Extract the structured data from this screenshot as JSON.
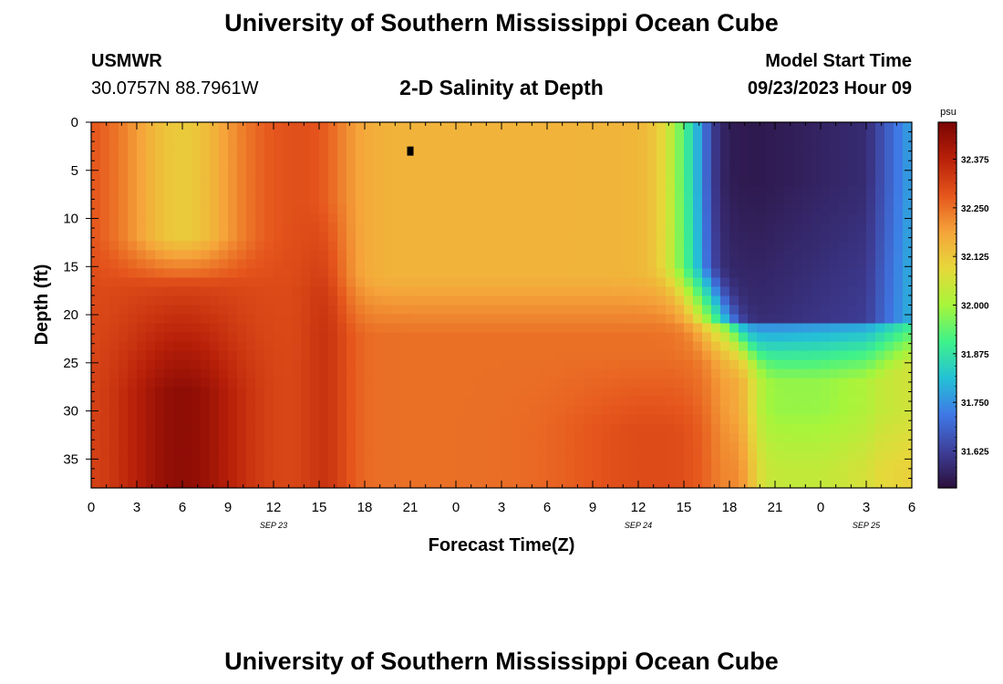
{
  "page": {
    "title": "University of Southern Mississippi Ocean Cube",
    "station": "USMWR",
    "coordinates": "30.0757N  88.7961W",
    "subtitle": "2-D Salinity at Depth",
    "model_start_label": "Model Start Time",
    "model_start_value": "09/23/2023 Hour 09",
    "footer_title": "University of Southern Mississippi Ocean Cube"
  },
  "chart_data": {
    "type": "heatmap",
    "xlabel": "Forecast Time(Z)",
    "ylabel": "Depth (ft)",
    "x_ticks": [
      "0",
      "3",
      "6",
      "9",
      "12",
      "15",
      "18",
      "21",
      "0",
      "3",
      "6",
      "9",
      "12",
      "15",
      "18",
      "21",
      "0",
      "3",
      "6"
    ],
    "date_labels": [
      {
        "label": "SEP 23",
        "hour_index": 12
      },
      {
        "label": "SEP 24",
        "hour_index": 36
      },
      {
        "label": "SEP 25",
        "hour_index": 51
      }
    ],
    "y_ticks": [
      0,
      5,
      10,
      15,
      20,
      25,
      30,
      35
    ],
    "ylim": [
      38,
      0
    ],
    "xlim_hours": [
      0,
      54
    ],
    "colorbar": {
      "unit": "psu",
      "range": [
        31.53,
        32.47
      ],
      "ticks": [
        "32.375",
        "32.250",
        "32.125",
        "32.000",
        "31.875",
        "31.750",
        "31.625"
      ],
      "colors": [
        "#2b0f3a",
        "#3e3f99",
        "#3f78e6",
        "#24c1d6",
        "#3ef28a",
        "#a7f53a",
        "#e6d83a",
        "#f5a43a",
        "#e5551c",
        "#b82009",
        "#7a0403"
      ]
    },
    "marker": {
      "hour": 21,
      "depth": 3
    }
  }
}
